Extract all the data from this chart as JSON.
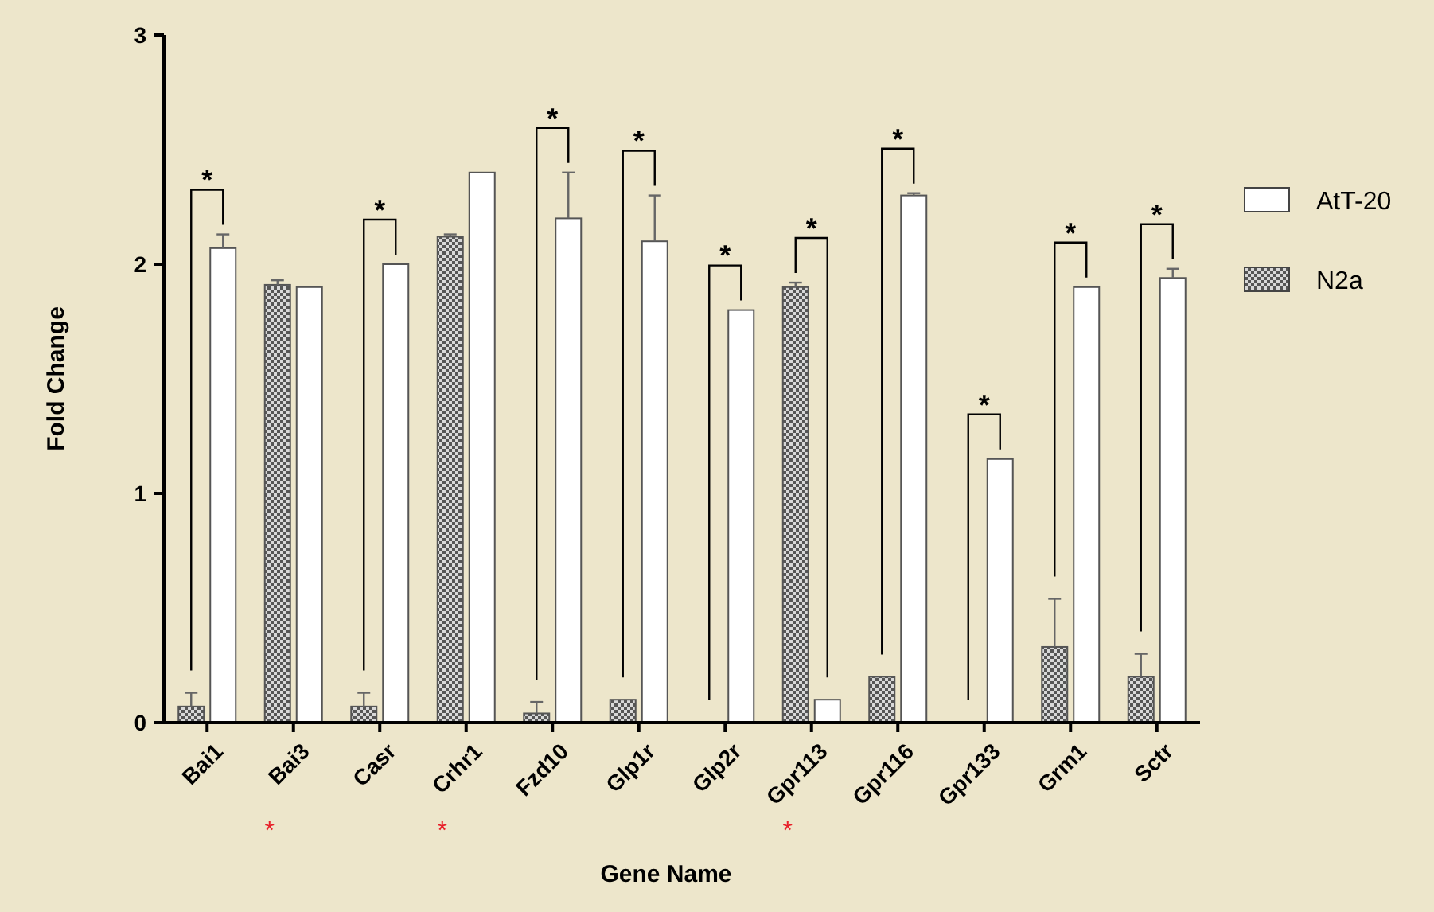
{
  "chart_data": {
    "type": "bar",
    "xlabel": "Gene Name",
    "ylabel": "Fold Change",
    "categories": [
      "Bai1",
      "Bai3",
      "Casr",
      "Crhr1",
      "Fzd10",
      "Glp1r",
      "Glp2r",
      "Gpr113",
      "Gpr116",
      "Gpr133",
      "Grm1",
      "Sctr"
    ],
    "series": [
      {
        "name": "N2a",
        "color": "#555555",
        "values": [
          0.07,
          1.91,
          0.07,
          2.12,
          0.04,
          0.1,
          0,
          1.9,
          0.2,
          0,
          0.33,
          0.2
        ],
        "errors": [
          [
            0.07,
            0.13
          ],
          [
            1.91,
            1.93
          ],
          [
            0.07,
            0.13
          ],
          [
            2.12,
            2.13
          ],
          [
            0.04,
            0.09
          ],
          null,
          null,
          [
            1.9,
            1.92
          ],
          null,
          null,
          [
            0.33,
            0.54
          ],
          [
            0.2,
            0.3
          ]
        ]
      },
      {
        "name": "AtT-20",
        "color": "#ffffff",
        "values": [
          2.07,
          1.9,
          2.0,
          2.4,
          2.2,
          2.1,
          1.8,
          0.1,
          2.3,
          1.15,
          1.9,
          1.94
        ],
        "errors": [
          [
            2.07,
            2.13
          ],
          null,
          null,
          null,
          [
            2.2,
            2.4
          ],
          [
            2.1,
            2.3
          ],
          null,
          null,
          [
            2.3,
            2.31
          ],
          null,
          null,
          [
            1.94,
            1.98
          ]
        ]
      }
    ],
    "ylim": [
      0,
      3
    ],
    "yticks": [
      0,
      1,
      2,
      3
    ],
    "grid": false,
    "legend": "top right",
    "annotations": [
      "*",
      "*",
      "*",
      "*",
      "*",
      "*",
      "*",
      "*",
      "*",
      "*",
      "*",
      "*",
      "*"
    ]
  }
}
